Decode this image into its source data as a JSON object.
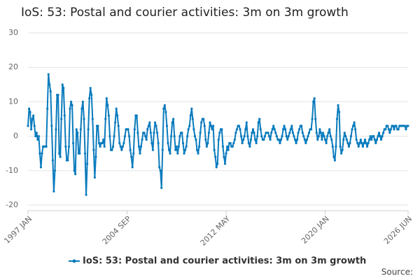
{
  "chart_data": {
    "type": "line",
    "title": "IoS: 53: Postal and courier activities: 3m on 3m growth",
    "source_label": "Source:",
    "categories": [
      "1997 JAN",
      null,
      null,
      null,
      null,
      null,
      null,
      null,
      null,
      null,
      null,
      null,
      null,
      null,
      null,
      null,
      null,
      null,
      null,
      null,
      null,
      null,
      null,
      null,
      null,
      null,
      null,
      null,
      null,
      null,
      null,
      null,
      null,
      null,
      null,
      null,
      null,
      null,
      null,
      null,
      null,
      null,
      null,
      null,
      null,
      null,
      null,
      null,
      null,
      null,
      null,
      null,
      null,
      null,
      null,
      null,
      null,
      null,
      null,
      null,
      null,
      null,
      null,
      null,
      null,
      null,
      null,
      null,
      null,
      null,
      null,
      null,
      null,
      null,
      null,
      null,
      null,
      null,
      null,
      null,
      null,
      null,
      null,
      null,
      null,
      null,
      null,
      null,
      null,
      null,
      null,
      null,
      "2004 SEP",
      null,
      null,
      null,
      null,
      null,
      null,
      null,
      null,
      null,
      null,
      null,
      null,
      null,
      null,
      null,
      null,
      null,
      null,
      null,
      null,
      null,
      null,
      null,
      null,
      null,
      null,
      null,
      null,
      null,
      null,
      null,
      null,
      null,
      null,
      null,
      null,
      null,
      null,
      null,
      null,
      null,
      null,
      null,
      null,
      null,
      null,
      null,
      null,
      null,
      null,
      null,
      null,
      null,
      null,
      null,
      null,
      null,
      null,
      null,
      null,
      null,
      null,
      null,
      null,
      null,
      null,
      null,
      null,
      null,
      null,
      null,
      null,
      null,
      null,
      null,
      null,
      null,
      null,
      null,
      null,
      null,
      null,
      null,
      null,
      null,
      null,
      null,
      null,
      null,
      null,
      null,
      "2012 MAY",
      null,
      null,
      null,
      null,
      null,
      null,
      null,
      null,
      null,
      null,
      null,
      null,
      null,
      null,
      null,
      null,
      null,
      null,
      null,
      null,
      null,
      null,
      null,
      null,
      null,
      null,
      null,
      null,
      null,
      null,
      null,
      null,
      null,
      null,
      null,
      null,
      null,
      null,
      null,
      null,
      null,
      null,
      null,
      null,
      null,
      null,
      null,
      null,
      null,
      null,
      null,
      null,
      null,
      null,
      null,
      null,
      null,
      null,
      null,
      null,
      null,
      null,
      null,
      null,
      null,
      null,
      null,
      null,
      null,
      null,
      null,
      null,
      null,
      null,
      null,
      null,
      null,
      null,
      null,
      null,
      null,
      null,
      null,
      null,
      null,
      null,
      null,
      null,
      null,
      null,
      null,
      "2020 JAN",
      null,
      null,
      null,
      null,
      null,
      null,
      null,
      null,
      null,
      null,
      null,
      null,
      null,
      null,
      null,
      null,
      null,
      null,
      null,
      null,
      null,
      null,
      null,
      null,
      null,
      null,
      null,
      null,
      null,
      null,
      null,
      null,
      null,
      null,
      null,
      null,
      null,
      null,
      null,
      null,
      null,
      null,
      null,
      null,
      null,
      null,
      null,
      null,
      null,
      null,
      null,
      null,
      null,
      null,
      null,
      null,
      null,
      null,
      null,
      null,
      null,
      null,
      null,
      null,
      null,
      null,
      null,
      null,
      null,
      null,
      null,
      null,
      null,
      null,
      null,
      null,
      "2026 JUN"
    ],
    "series": [
      {
        "name": "IoS: 53: Postal and courier activities: 3m on 3m growth",
        "color": "#0a7bbd",
        "values": [
          3,
          8,
          7,
          2,
          5,
          6,
          3,
          0,
          1,
          -1,
          0,
          -5,
          -9,
          -5,
          -3,
          -3,
          -3,
          -3,
          8,
          18,
          15,
          13,
          3,
          -7,
          -16,
          -10,
          2,
          12,
          12,
          -5,
          -6,
          5,
          15,
          14,
          6,
          -3,
          -7,
          -7,
          -3,
          8,
          10,
          9,
          -2,
          -10,
          -11,
          2,
          1,
          -5,
          -5,
          2,
          8,
          10,
          5,
          -5,
          -17,
          -8,
          2,
          11,
          14,
          12,
          5,
          -4,
          -12,
          -6,
          3,
          3,
          -2,
          -3,
          -2,
          -2,
          -1,
          -3,
          5,
          11,
          9,
          6,
          0,
          -4,
          -4,
          -3,
          0,
          4,
          8,
          6,
          3,
          -2,
          -3,
          -4,
          -3,
          -2,
          0,
          2,
          2,
          2,
          0,
          -4,
          -6,
          -9,
          -5,
          2,
          6,
          6,
          1,
          -3,
          -5,
          -3,
          -1,
          1,
          1,
          0,
          -1,
          2,
          3,
          4,
          1,
          -2,
          -4,
          1,
          4,
          3,
          1,
          -2,
          -9,
          -10,
          -15,
          -4,
          8,
          9,
          7,
          3,
          -2,
          -4,
          -5,
          0,
          4,
          5,
          0,
          -4,
          -3,
          -5,
          -3,
          0,
          1,
          1,
          -2,
          -5,
          -4,
          -3,
          0,
          2,
          3,
          6,
          8,
          5,
          2,
          0,
          -1,
          -4,
          -5,
          -3,
          1,
          4,
          5,
          5,
          3,
          -1,
          -3,
          -2,
          1,
          4,
          3,
          2,
          3,
          -4,
          -6,
          -9,
          -8,
          -1,
          1,
          2,
          2,
          -3,
          -6,
          -8,
          -5,
          -3,
          -4,
          -2,
          -2,
          -3,
          -3,
          -2,
          -1,
          1,
          2,
          3,
          3,
          2,
          0,
          -2,
          -1,
          0,
          2,
          4,
          0,
          -2,
          -3,
          -1,
          1,
          2,
          1,
          -1,
          -2,
          0,
          4,
          5,
          2,
          0,
          -1,
          -1,
          0,
          1,
          1,
          1,
          0,
          -1,
          1,
          2,
          3,
          2,
          1,
          0,
          -1,
          -1,
          -2,
          -1,
          0,
          2,
          3,
          2,
          0,
          -1,
          0,
          1,
          2,
          3,
          1,
          0,
          -1,
          -2,
          -1,
          1,
          2,
          3,
          3,
          1,
          0,
          -1,
          -2,
          -1,
          0,
          1,
          2,
          2,
          5,
          10,
          11,
          5,
          1,
          -1,
          0,
          2,
          1,
          -1,
          1,
          0,
          -1,
          -2,
          0,
          1,
          2,
          0,
          -1,
          -3,
          -6,
          -7,
          -3,
          5,
          9,
          7,
          -3,
          -5,
          -4,
          -1,
          1,
          0,
          -1,
          -2,
          -3,
          -2,
          0,
          2,
          3,
          4,
          2,
          -1,
          -2,
          -3,
          -2,
          -1,
          -2,
          -3,
          -2,
          -1,
          -2,
          -3,
          -2,
          -1,
          0,
          -1,
          0,
          0,
          -1,
          -2,
          -1,
          0,
          1,
          0,
          -1,
          0,
          1,
          2,
          2,
          3,
          3,
          2,
          1,
          2,
          3,
          3,
          2,
          3,
          3,
          2,
          2,
          3,
          3,
          3,
          3,
          3,
          3,
          2,
          3,
          3
        ]
      }
    ],
    "ylim": [
      -20,
      30
    ],
    "yticks": [
      -20,
      -10,
      0,
      10,
      20,
      30
    ],
    "grid": true,
    "legend": "bottom"
  }
}
